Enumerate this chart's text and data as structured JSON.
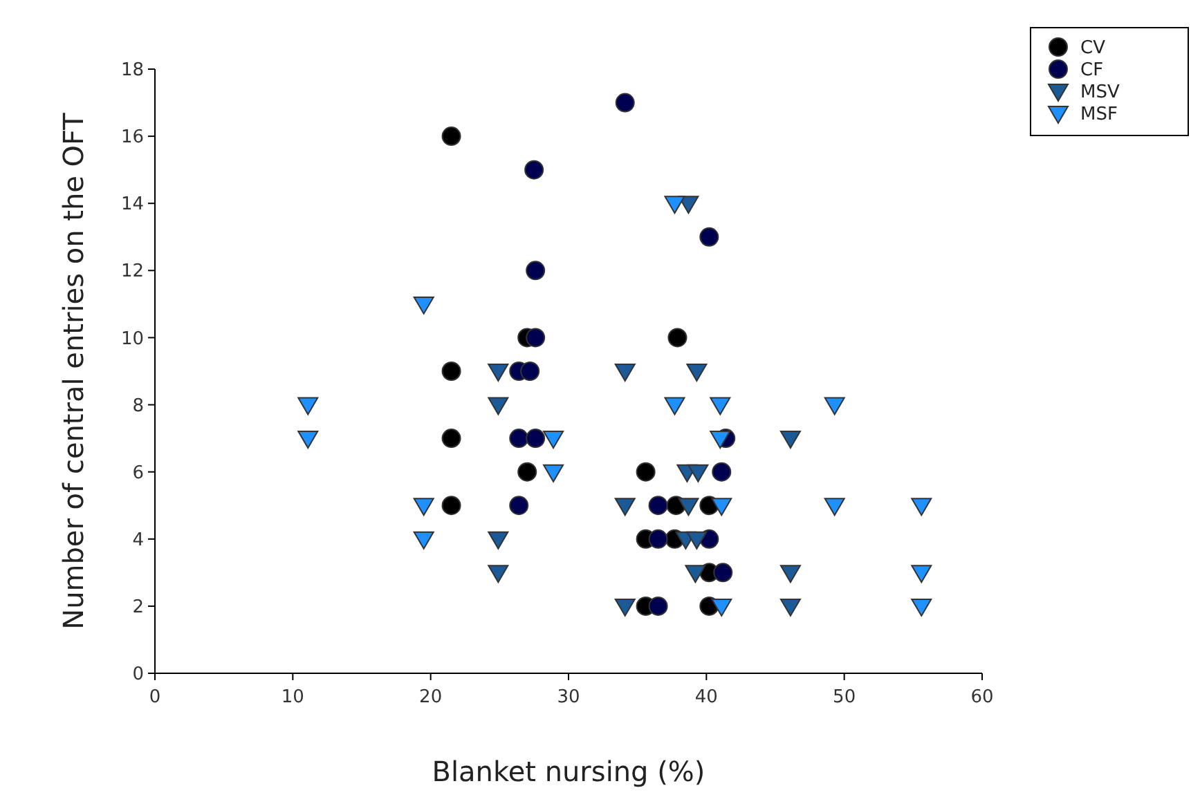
{
  "chart_data": {
    "type": "scatter",
    "xlabel": "Blanket nursing (%)",
    "ylabel": "Number of central entries on the OFT",
    "xlim": [
      0,
      60
    ],
    "xticks": [
      0,
      10,
      20,
      30,
      40,
      50,
      60
    ],
    "ylim": [
      0,
      18
    ],
    "yticks": [
      0,
      2,
      4,
      6,
      8,
      10,
      12,
      14,
      16,
      18
    ],
    "grid": false,
    "legend": "top right",
    "series": [
      {
        "name": "CV",
        "color": "#000000",
        "marker": "circle",
        "x": [
          21.5,
          21.5,
          21.5,
          21.5,
          27,
          27,
          35.6,
          37.9,
          37.8,
          40.2,
          35.6,
          37.7,
          40.2,
          35.6,
          40.2
        ],
        "values": [
          16,
          9,
          7,
          5,
          10,
          6,
          6,
          10,
          5,
          5,
          4,
          4,
          3,
          2,
          2
        ]
      },
      {
        "name": "CF",
        "color": "#000050",
        "marker": "circle",
        "x": [
          34.1,
          27.5,
          27.6,
          27.6,
          40.2,
          26.4,
          27.2,
          26.4,
          27.6,
          41.1,
          26.4,
          36.5,
          36.5,
          40.2,
          41.2,
          36.5,
          41.4
        ],
        "values": [
          17,
          15,
          12,
          10,
          13,
          9,
          9,
          7,
          7,
          6,
          5,
          5,
          4,
          4,
          3,
          2,
          7
        ]
      },
      {
        "name": "MSV",
        "color": "#1b5a96",
        "marker": "triangle",
        "x": [
          38.7,
          24.9,
          34.1,
          39.3,
          24.9,
          38.6,
          39.4,
          34.1,
          38.7,
          24.9,
          38.5,
          39.3,
          24.9,
          39.2,
          34.1,
          46.1,
          46.1,
          46.1
        ],
        "values": [
          14,
          9,
          9,
          9,
          8,
          6,
          6,
          5,
          5,
          4,
          4,
          4,
          3,
          3,
          2,
          7,
          3,
          2
        ]
      },
      {
        "name": "MSF",
        "color": "#1e90ff",
        "marker": "triangle",
        "x": [
          37.7,
          19.5,
          11.1,
          11.1,
          19.5,
          19.5,
          37.7,
          41,
          28.9,
          41,
          28.9,
          41.1,
          41.1,
          49.3,
          49.3,
          55.6,
          55.6,
          55.6
        ],
        "values": [
          14,
          11,
          8,
          7,
          5,
          4,
          8,
          8,
          7,
          7,
          6,
          5,
          2,
          8,
          5,
          5,
          3,
          2
        ]
      }
    ]
  }
}
